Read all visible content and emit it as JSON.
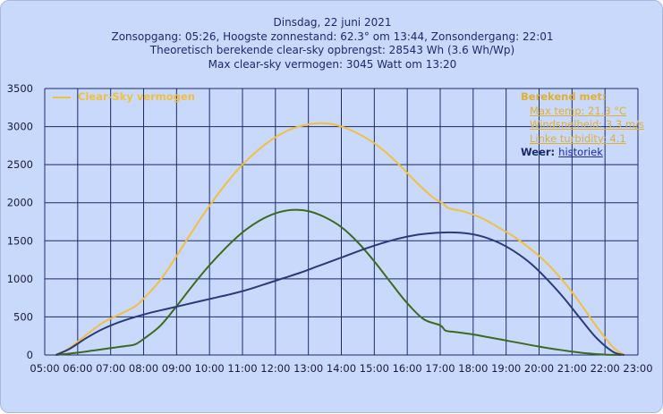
{
  "header": {
    "line1": "Dinsdag, 22 juni 2021",
    "line2": "Zonsopgang: 05:26, Hoogste zonnestand: 62.3° om 13:44, Zonsondergang: 22:01",
    "line3": "Theoretisch berekende clear-sky opbrengst: 28543 Wh (3.6 Wh/Wp)",
    "line4": "Max clear-sky vermogen: 3045 Watt om 13:20"
  },
  "legend": {
    "label": "Clear-Sky vermogen",
    "color": "#f0c040"
  },
  "info": {
    "header": "Berekend met:",
    "max_temp": "Max temp: 21.3 °C",
    "windsnelheid": "Windsnelheid: 3.3 m/s",
    "linke": "Linke turbidity: 4.1",
    "weer_label": "Weer:",
    "weer_link": "historiek"
  },
  "watermark": "logo-watermark",
  "colors": {
    "background": "#c9d9fb",
    "grid": "#1a2a6c",
    "clear_sky": "#f0c040",
    "green": "#3d6a1e",
    "navy": "#2a3a7a"
  },
  "chart_data": {
    "type": "line",
    "ylim": [
      0,
      3500
    ],
    "y_ticks": [
      0,
      500,
      1000,
      1500,
      2000,
      2500,
      3000,
      3500
    ],
    "xlim": [
      "05:00",
      "23:00"
    ],
    "x_ticks": [
      "05:00",
      "06:00",
      "07:00",
      "08:00",
      "09:00",
      "10:00",
      "11:00",
      "12:00",
      "13:00",
      "14:00",
      "15:00",
      "16:00",
      "17:00",
      "18:00",
      "19:00",
      "20:00",
      "21:00",
      "22:00",
      "23:00"
    ],
    "grid": true,
    "legend_position": "top-left",
    "series": [
      {
        "name": "Clear-Sky vermogen",
        "color": "#f0c040",
        "points": [
          [
            "05:20",
            0
          ],
          [
            "05:45",
            90
          ],
          [
            "06:15",
            260
          ],
          [
            "06:45",
            420
          ],
          [
            "07:15",
            530
          ],
          [
            "07:45",
            640
          ],
          [
            "08:00",
            740
          ],
          [
            "08:30",
            980
          ],
          [
            "09:00",
            1300
          ],
          [
            "09:30",
            1640
          ],
          [
            "10:00",
            1960
          ],
          [
            "10:30",
            2250
          ],
          [
            "11:00",
            2500
          ],
          [
            "11:30",
            2700
          ],
          [
            "12:00",
            2860
          ],
          [
            "12:30",
            2970
          ],
          [
            "13:00",
            3030
          ],
          [
            "13:20",
            3045
          ],
          [
            "13:45",
            3030
          ],
          [
            "14:15",
            2960
          ],
          [
            "14:45",
            2850
          ],
          [
            "15:15",
            2700
          ],
          [
            "15:45",
            2500
          ],
          [
            "16:15",
            2280
          ],
          [
            "16:45",
            2080
          ],
          [
            "17:05",
            1990
          ],
          [
            "17:15",
            1930
          ],
          [
            "17:45",
            1880
          ],
          [
            "18:15",
            1800
          ],
          [
            "18:45",
            1680
          ],
          [
            "19:15",
            1550
          ],
          [
            "19:45",
            1390
          ],
          [
            "20:15",
            1200
          ],
          [
            "20:45",
            960
          ],
          [
            "21:15",
            680
          ],
          [
            "21:45",
            370
          ],
          [
            "22:15",
            100
          ],
          [
            "22:35",
            0
          ]
        ]
      },
      {
        "name": "",
        "color": "#3d6a1e",
        "points": [
          [
            "05:20",
            0
          ],
          [
            "06:00",
            30
          ],
          [
            "06:30",
            60
          ],
          [
            "07:00",
            90
          ],
          [
            "07:30",
            120
          ],
          [
            "07:45",
            140
          ],
          [
            "08:00",
            210
          ],
          [
            "08:30",
            380
          ],
          [
            "09:00",
            640
          ],
          [
            "09:30",
            920
          ],
          [
            "10:00",
            1180
          ],
          [
            "10:30",
            1410
          ],
          [
            "11:00",
            1610
          ],
          [
            "11:30",
            1760
          ],
          [
            "12:00",
            1860
          ],
          [
            "12:30",
            1905
          ],
          [
            "13:00",
            1890
          ],
          [
            "13:30",
            1810
          ],
          [
            "14:00",
            1680
          ],
          [
            "14:30",
            1480
          ],
          [
            "15:00",
            1230
          ],
          [
            "15:30",
            950
          ],
          [
            "16:00",
            680
          ],
          [
            "16:30",
            470
          ],
          [
            "17:00",
            390
          ],
          [
            "17:10",
            320
          ],
          [
            "17:30",
            300
          ],
          [
            "18:00",
            270
          ],
          [
            "18:30",
            230
          ],
          [
            "19:00",
            190
          ],
          [
            "19:30",
            150
          ],
          [
            "20:00",
            110
          ],
          [
            "20:30",
            75
          ],
          [
            "21:00",
            45
          ],
          [
            "21:30",
            20
          ],
          [
            "22:00",
            5
          ],
          [
            "22:30",
            0
          ]
        ]
      },
      {
        "name": "",
        "color": "#2a3a7a",
        "points": [
          [
            "05:20",
            0
          ],
          [
            "05:45",
            80
          ],
          [
            "06:15",
            220
          ],
          [
            "06:45",
            340
          ],
          [
            "07:15",
            430
          ],
          [
            "07:45",
            500
          ],
          [
            "08:15",
            560
          ],
          [
            "08:45",
            610
          ],
          [
            "09:15",
            660
          ],
          [
            "09:45",
            710
          ],
          [
            "10:15",
            760
          ],
          [
            "10:45",
            810
          ],
          [
            "11:15",
            870
          ],
          [
            "11:45",
            940
          ],
          [
            "12:15",
            1010
          ],
          [
            "12:45",
            1080
          ],
          [
            "13:15",
            1160
          ],
          [
            "13:45",
            1240
          ],
          [
            "14:15",
            1320
          ],
          [
            "14:45",
            1400
          ],
          [
            "15:15",
            1470
          ],
          [
            "15:45",
            1530
          ],
          [
            "16:15",
            1575
          ],
          [
            "16:45",
            1600
          ],
          [
            "17:15",
            1610
          ],
          [
            "17:45",
            1600
          ],
          [
            "18:15",
            1560
          ],
          [
            "18:45",
            1480
          ],
          [
            "19:15",
            1360
          ],
          [
            "19:45",
            1200
          ],
          [
            "20:15",
            990
          ],
          [
            "20:45",
            750
          ],
          [
            "21:15",
            480
          ],
          [
            "21:45",
            220
          ],
          [
            "22:15",
            40
          ],
          [
            "22:35",
            0
          ]
        ]
      }
    ]
  }
}
